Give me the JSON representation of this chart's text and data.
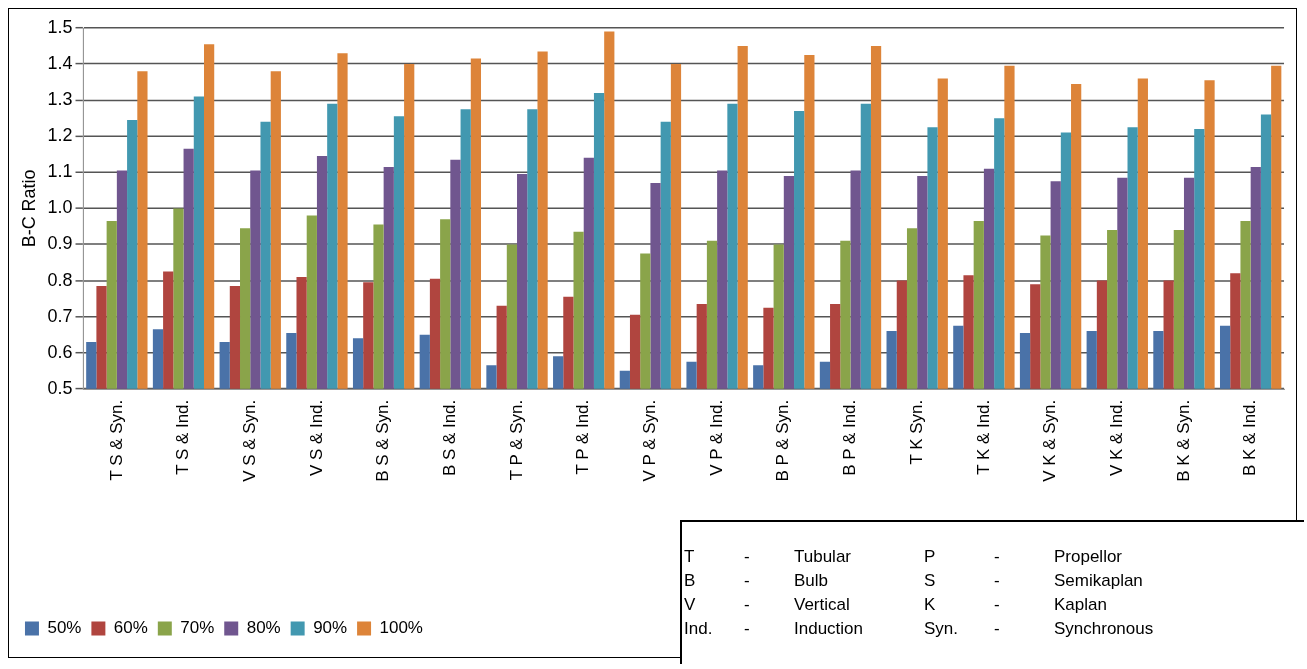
{
  "chart_data": {
    "type": "bar",
    "ylabel": "B-C Ratio",
    "categories": [
      "T S & Syn.",
      "T S & Ind.",
      "V S & Syn.",
      "V S & Ind.",
      "B S & Syn.",
      "B S & Ind.",
      "T P & Syn.",
      "T P & Ind.",
      "V P & Syn.",
      "V P & Ind.",
      "B P & Syn.",
      "B P & Ind.",
      "T K Syn.",
      "T K & Ind.",
      "V K & Syn.",
      "V K & Ind.",
      "B K & Syn.",
      "B K & Ind."
    ],
    "series": [
      {
        "name": "50%",
        "color": "#4a72a8",
        "values": [
          0.63,
          0.665,
          0.63,
          0.655,
          0.64,
          0.65,
          0.565,
          0.59,
          0.55,
          0.575,
          0.565,
          0.575,
          0.66,
          0.675,
          0.655,
          0.66,
          0.66,
          0.675
        ]
      },
      {
        "name": "60%",
        "color": "#b0453f",
        "values": [
          0.785,
          0.825,
          0.785,
          0.81,
          0.795,
          0.805,
          0.73,
          0.755,
          0.705,
          0.735,
          0.725,
          0.735,
          0.8,
          0.815,
          0.79,
          0.8,
          0.8,
          0.82
        ]
      },
      {
        "name": "70%",
        "color": "#8aa44a",
        "values": [
          0.965,
          1.0,
          0.945,
          0.98,
          0.955,
          0.97,
          0.9,
          0.935,
          0.875,
          0.91,
          0.9,
          0.91,
          0.945,
          0.965,
          0.925,
          0.94,
          0.94,
          0.965
        ]
      },
      {
        "name": "80%",
        "color": "#70568f",
        "values": [
          1.105,
          1.165,
          1.105,
          1.145,
          1.115,
          1.135,
          1.095,
          1.14,
          1.07,
          1.105,
          1.09,
          1.105,
          1.09,
          1.11,
          1.075,
          1.085,
          1.085,
          1.115
        ]
      },
      {
        "name": "90%",
        "color": "#4298b0",
        "values": [
          1.245,
          1.31,
          1.24,
          1.29,
          1.255,
          1.275,
          1.275,
          1.32,
          1.24,
          1.29,
          1.27,
          1.29,
          1.225,
          1.25,
          1.21,
          1.225,
          1.22,
          1.26
        ]
      },
      {
        "name": "100%",
        "color": "#dd8439",
        "values": [
          1.38,
          1.455,
          1.38,
          1.43,
          1.4,
          1.415,
          1.435,
          1.49,
          1.4,
          1.45,
          1.425,
          1.45,
          1.36,
          1.395,
          1.345,
          1.36,
          1.355,
          1.395
        ]
      }
    ],
    "ylim": [
      0.5,
      1.5
    ],
    "yticks": [
      0.5,
      0.6,
      0.7,
      0.8,
      0.9,
      {
        "value": 1,
        "label": "1.0"
      },
      1.1,
      1.2,
      1.3,
      1.4,
      1.5
    ],
    "grid": "y",
    "legend": "bottom left",
    "annotations": [
      "T - Tubular",
      "P - Propellor",
      "B - Bulb",
      "S - Semikaplan",
      "V - Vertical",
      "K - Kaplan",
      "Ind. - Induction",
      "Syn. - Synchronous"
    ]
  }
}
